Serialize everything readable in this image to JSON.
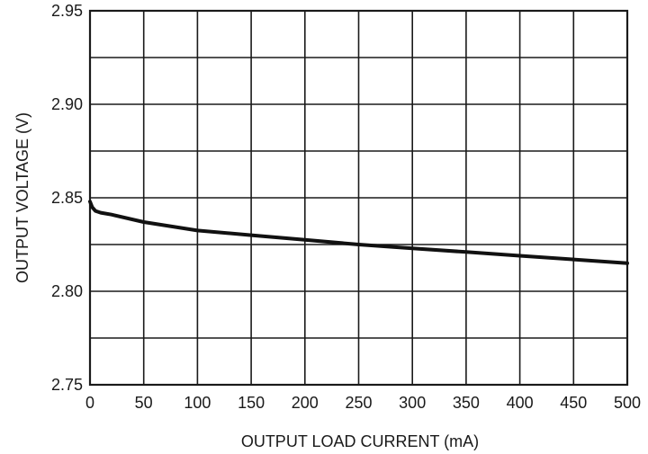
{
  "chart_data": {
    "type": "line",
    "title": "",
    "xlabel": "OUTPUT LOAD CURRENT (mA)",
    "ylabel": "OUTPUT VOLTAGE (V)",
    "xlim": [
      0,
      500
    ],
    "ylim": [
      2.75,
      2.95
    ],
    "xticks": [
      0,
      50,
      100,
      150,
      200,
      250,
      300,
      350,
      400,
      450,
      500
    ],
    "xtick_labels": [
      "0",
      "50",
      "100",
      "150",
      "200",
      "250",
      "300",
      "350",
      "400",
      "450",
      "500"
    ],
    "yticks": [
      2.75,
      2.8,
      2.85,
      2.9,
      2.95
    ],
    "ytick_labels": [
      "2.75",
      "2.80",
      "2.85",
      "2.90",
      "2.95"
    ],
    "x_grid_step": 50,
    "y_grid_step": 0.025,
    "grid": true,
    "series": [
      {
        "color": "#111111",
        "x": [
          0,
          2,
          5,
          10,
          20,
          50,
          100,
          150,
          200,
          250,
          300,
          350,
          400,
          450,
          500
        ],
        "y": [
          2.848,
          2.845,
          2.843,
          2.842,
          2.841,
          2.837,
          2.8325,
          2.83,
          2.8275,
          2.825,
          2.823,
          2.821,
          2.819,
          2.817,
          2.815
        ]
      }
    ]
  }
}
